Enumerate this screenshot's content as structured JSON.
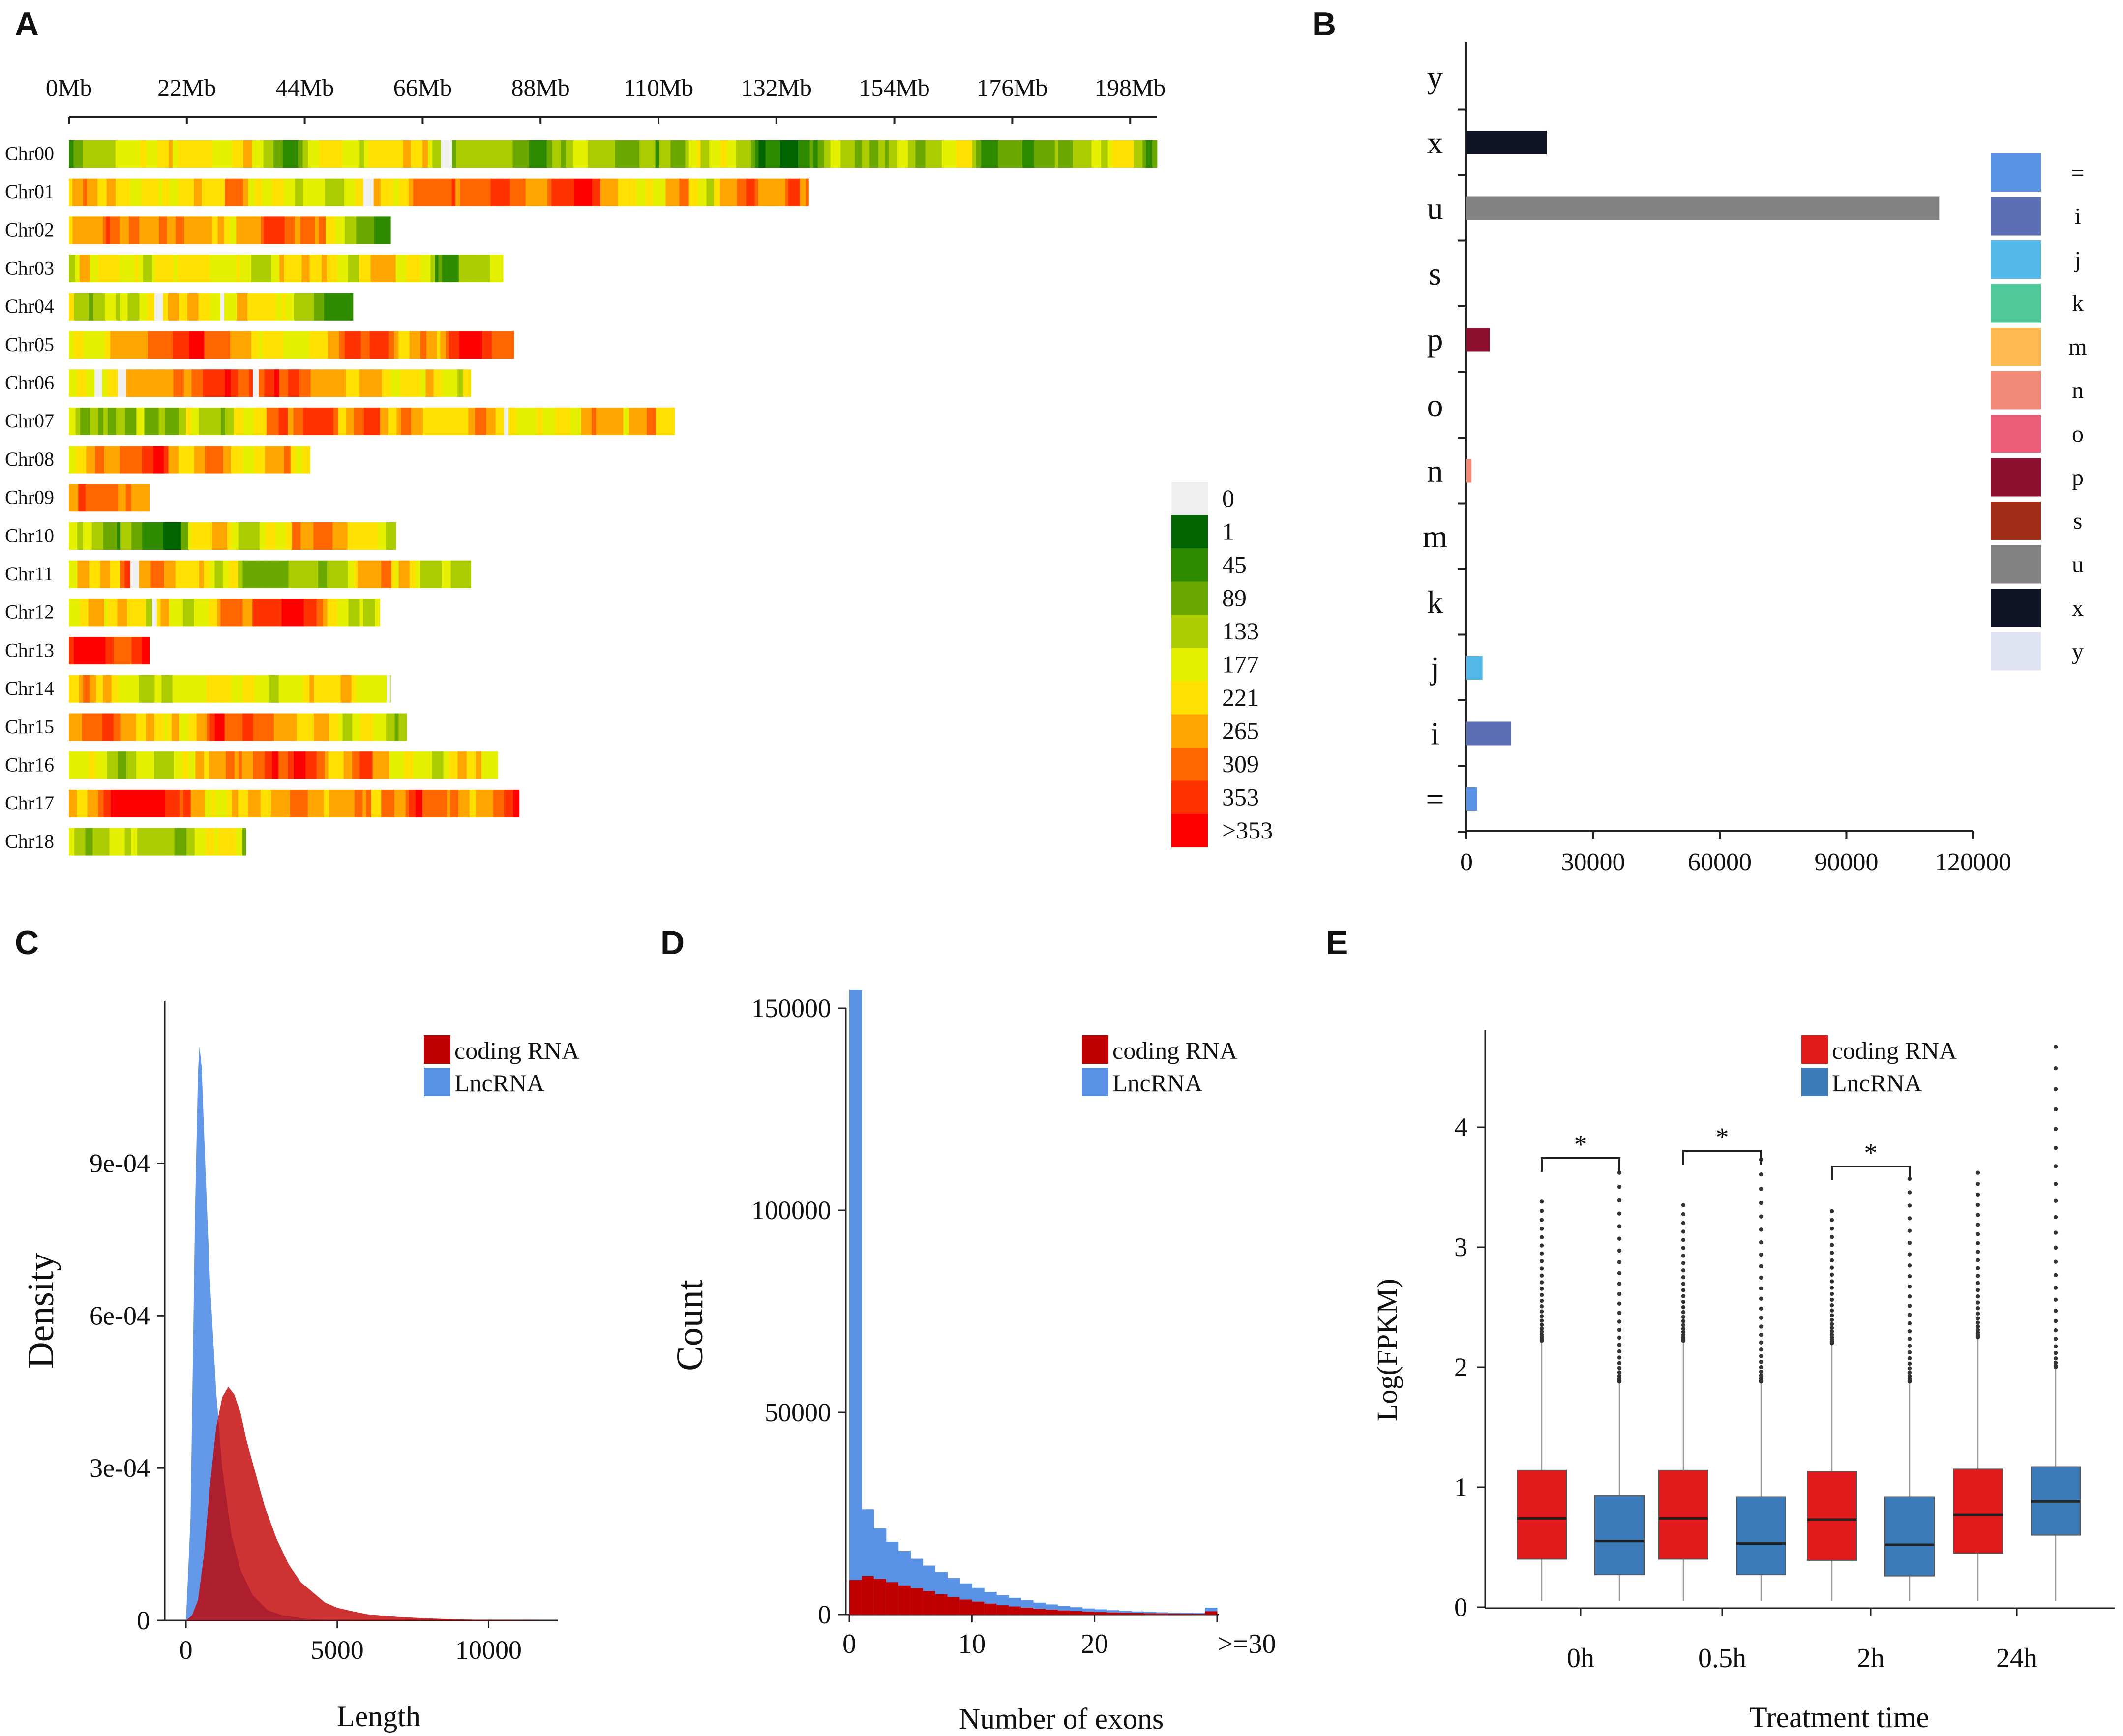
{
  "panels": {
    "A": "A",
    "B": "B",
    "C": "C",
    "D": "D",
    "E": "E"
  },
  "colors": {
    "coding": "#c00000",
    "lnc": "#5a92e6",
    "box_red": "#e31a1c",
    "box_blue": "#3a7ab8"
  },
  "chart_data": [
    {
      "panel": "A",
      "type": "heatmap",
      "title": "",
      "xaxis_ticks": [
        "0Mb",
        "22Mb",
        "44Mb",
        "66Mb",
        "88Mb",
        "110Mb",
        "132Mb",
        "154Mb",
        "176Mb",
        "198Mb"
      ],
      "chromosomes": [
        {
          "name": "Chr00",
          "length_mb": 203,
          "bias": 0.28,
          "seed": 11
        },
        {
          "name": "Chr01",
          "length_mb": 138,
          "bias": 0.56,
          "seed": 23
        },
        {
          "name": "Chr02",
          "length_mb": 60,
          "bias": 0.58,
          "seed": 37
        },
        {
          "name": "Chr03",
          "length_mb": 81,
          "bias": 0.47,
          "seed": 41
        },
        {
          "name": "Chr04",
          "length_mb": 53,
          "bias": 0.56,
          "seed": 53
        },
        {
          "name": "Chr05",
          "length_mb": 83,
          "bias": 0.5,
          "seed": 67
        },
        {
          "name": "Chr06",
          "length_mb": 75,
          "bias": 0.55,
          "seed": 71
        },
        {
          "name": "Chr07",
          "length_mb": 113,
          "bias": 0.52,
          "seed": 83
        },
        {
          "name": "Chr08",
          "length_mb": 45,
          "bias": 0.5,
          "seed": 97
        },
        {
          "name": "Chr09",
          "length_mb": 15,
          "bias": 0.78,
          "seed": 101
        },
        {
          "name": "Chr10",
          "length_mb": 61,
          "bias": 0.52,
          "seed": 113
        },
        {
          "name": "Chr11",
          "length_mb": 75,
          "bias": 0.52,
          "seed": 127
        },
        {
          "name": "Chr12",
          "length_mb": 58,
          "bias": 0.56,
          "seed": 131
        },
        {
          "name": "Chr13",
          "length_mb": 15,
          "bias": 0.76,
          "seed": 149
        },
        {
          "name": "Chr14",
          "length_mb": 60,
          "bias": 0.54,
          "seed": 157
        },
        {
          "name": "Chr15",
          "length_mb": 63,
          "bias": 0.55,
          "seed": 163
        },
        {
          "name": "Chr16",
          "length_mb": 80,
          "bias": 0.54,
          "seed": 173
        },
        {
          "name": "Chr17",
          "length_mb": 84,
          "bias": 0.55,
          "seed": 181
        },
        {
          "name": "Chr18",
          "length_mb": 33,
          "bias": 0.6,
          "seed": 191
        }
      ],
      "legend": [
        {
          "label": "0",
          "color": "#f0f0f0"
        },
        {
          "label": "1",
          "color": "#006400"
        },
        {
          "label": "45",
          "color": "#2e8b00"
        },
        {
          "label": "89",
          "color": "#6aa800"
        },
        {
          "label": "133",
          "color": "#aacc00"
        },
        {
          "label": "177",
          "color": "#e5f000"
        },
        {
          "label": "221",
          "color": "#ffe000"
        },
        {
          "label": "265",
          "color": "#ffa500"
        },
        {
          "label": "309",
          "color": "#ff6600"
        },
        {
          "label": "353",
          "color": "#ff3300"
        },
        {
          "label": ">353",
          "color": "#ff0000"
        }
      ]
    },
    {
      "panel": "B",
      "type": "bar",
      "orientation": "horizontal",
      "categories": [
        "=",
        "i",
        "j",
        "k",
        "m",
        "n",
        "o",
        "p",
        "s",
        "u",
        "x",
        "y"
      ],
      "values": [
        2500,
        10500,
        3800,
        0,
        0,
        1200,
        0,
        5500,
        0,
        112000,
        19000,
        0
      ],
      "xlim": [
        0,
        120000
      ],
      "xticks": [
        "0",
        "30000",
        "60000",
        "90000",
        "120000"
      ],
      "legend": [
        {
          "label": "=",
          "color": "#5a92e6"
        },
        {
          "label": "i",
          "color": "#5c6fb5"
        },
        {
          "label": "j",
          "color": "#52b8e8"
        },
        {
          "label": "k",
          "color": "#4fc99a"
        },
        {
          "label": "m",
          "color": "#ffb952"
        },
        {
          "label": "n",
          "color": "#f08a76"
        },
        {
          "label": "o",
          "color": "#ec5e78"
        },
        {
          "label": "p",
          "color": "#8e1030"
        },
        {
          "label": "s",
          "color": "#a22e1a"
        },
        {
          "label": "u",
          "color": "#828282"
        },
        {
          "label": "x",
          "color": "#0e1426"
        },
        {
          "label": "y",
          "color": "#dfe3f2"
        }
      ]
    },
    {
      "panel": "C",
      "type": "area",
      "xlabel": "Length",
      "ylabel": "Density",
      "xlim": [
        -700,
        12300
      ],
      "ylim": [
        0,
        0.00122
      ],
      "xticks": [
        {
          "v": 0,
          "label": "0"
        },
        {
          "v": 5000,
          "label": "5000"
        },
        {
          "v": 10000,
          "label": "10000"
        }
      ],
      "yticks": [
        {
          "v": 0,
          "label": "0"
        },
        {
          "v": 0.0003,
          "label": "3e-04"
        },
        {
          "v": 0.0006,
          "label": "6e-04"
        },
        {
          "v": 0.0009,
          "label": "9e-04"
        }
      ],
      "series": [
        {
          "name": "LncRNA",
          "color": "#5a92e6",
          "x": [
            0,
            150,
            300,
            400,
            450,
            520,
            650,
            800,
            1000,
            1200,
            1500,
            1800,
            2200,
            2700,
            3200,
            4000,
            5000,
            6000
          ],
          "y": [
            0,
            0.0002,
            0.0008,
            0.00108,
            0.00113,
            0.00109,
            0.00088,
            0.00066,
            0.00045,
            0.0003,
            0.00017,
            0.0001,
            5e-05,
            2e-05,
            1e-05,
            3e-06,
            1e-06,
            0
          ]
        },
        {
          "name": "coding RNA",
          "color": "#c00000",
          "x": [
            0,
            200,
            400,
            600,
            800,
            1000,
            1200,
            1400,
            1600,
            1800,
            2000,
            2300,
            2600,
            3000,
            3400,
            3800,
            4200,
            4600,
            5000,
            5500,
            6000,
            7000,
            8000,
            9000,
            10000,
            11000,
            12000
          ],
          "y": [
            0,
            1e-05,
            4e-05,
            0.00013,
            0.00027,
            0.00038,
            0.00044,
            0.00046,
            0.000445,
            0.00041,
            0.000355,
            0.00029,
            0.000225,
            0.00016,
            0.00011,
            7.5e-05,
            5.5e-05,
            3.5e-05,
            2.5e-05,
            1.8e-05,
            1.2e-05,
            7e-06,
            4e-06,
            2e-06,
            1e-06,
            5e-07,
            0
          ]
        }
      ],
      "legend": [
        "coding RNA",
        "LncRNA"
      ]
    },
    {
      "panel": "D",
      "type": "bar",
      "stacked": true,
      "xlabel": "Number of exons",
      "ylabel": "Count",
      "xlim": [
        0,
        30
      ],
      "ylim": [
        0,
        150000
      ],
      "xticks": [
        {
          "v": 0,
          "label": "0"
        },
        {
          "v": 10,
          "label": "10"
        },
        {
          "v": 20,
          "label": "20"
        },
        {
          "v": 30,
          "label": ">=30"
        }
      ],
      "yticks": [
        {
          "v": 0,
          "label": "0"
        },
        {
          "v": 50000,
          "label": "50000"
        },
        {
          "v": 100000,
          "label": "100000"
        },
        {
          "v": 150000,
          "label": "150000"
        }
      ],
      "bins": [
        1,
        2,
        3,
        4,
        5,
        6,
        7,
        8,
        9,
        10,
        11,
        12,
        13,
        14,
        15,
        16,
        17,
        18,
        19,
        20,
        21,
        22,
        23,
        24,
        25,
        26,
        27,
        28,
        29,
        30
      ],
      "series": [
        {
          "name": "coding RNA",
          "color": "#c00000",
          "values": [
            8500,
            9500,
            8800,
            8000,
            7200,
            6500,
            5800,
            5000,
            4300,
            3700,
            3200,
            2700,
            2300,
            2000,
            1700,
            1400,
            1200,
            1000,
            850,
            700,
            600,
            500,
            420,
            360,
            300,
            260,
            220,
            190,
            160,
            800
          ]
        },
        {
          "name": "LncRNA",
          "color": "#5a92e6",
          "values": [
            146000,
            16500,
            12500,
            10000,
            8500,
            7300,
            6300,
            5500,
            4700,
            4000,
            3400,
            2900,
            2500,
            2150,
            1850,
            1550,
            1300,
            1100,
            950,
            800,
            680,
            560,
            470,
            400,
            340,
            290,
            250,
            215,
            185,
            900
          ]
        }
      ],
      "legend": [
        "coding RNA",
        "LncRNA"
      ]
    },
    {
      "panel": "E",
      "type": "box",
      "xlabel": "Treatment time",
      "ylabel": "Log(FPKM)",
      "ylim": [
        0,
        4.75
      ],
      "categories": [
        "0h",
        "0.5h",
        "2h",
        "24h"
      ],
      "yticks": [
        {
          "v": 0,
          "label": "0"
        },
        {
          "v": 1,
          "label": "1"
        },
        {
          "v": 2,
          "label": "2"
        },
        {
          "v": 3,
          "label": "3"
        },
        {
          "v": 4,
          "label": "4"
        }
      ],
      "series": [
        {
          "name": "coding RNA",
          "color": "#e31a1c",
          "boxes": [
            {
              "min": 0.05,
              "q1": 0.4,
              "median": 0.74,
              "q3": 1.14,
              "max": 2.22,
              "outlier_top": 3.38
            },
            {
              "min": 0.05,
              "q1": 0.4,
              "median": 0.74,
              "q3": 1.14,
              "max": 2.22,
              "outlier_top": 3.35
            },
            {
              "min": 0.05,
              "q1": 0.39,
              "median": 0.73,
              "q3": 1.13,
              "max": 2.2,
              "outlier_top": 3.3
            },
            {
              "min": 0.05,
              "q1": 0.45,
              "median": 0.77,
              "q3": 1.15,
              "max": 2.25,
              "outlier_top": 3.62
            }
          ]
        },
        {
          "name": "LncRNA",
          "color": "#3a7ab8",
          "boxes": [
            {
              "min": 0.05,
              "q1": 0.27,
              "median": 0.55,
              "q3": 0.93,
              "max": 1.88,
              "outlier_top": 3.62
            },
            {
              "min": 0.05,
              "q1": 0.27,
              "median": 0.53,
              "q3": 0.92,
              "max": 1.88,
              "outlier_top": 3.73
            },
            {
              "min": 0.05,
              "q1": 0.26,
              "median": 0.52,
              "q3": 0.92,
              "max": 1.88,
              "outlier_top": 3.57
            },
            {
              "min": 0.05,
              "q1": 0.6,
              "median": 0.88,
              "q3": 1.17,
              "max": 2.0,
              "outlier_top": 4.67
            }
          ]
        }
      ],
      "significance": [
        "*",
        "*",
        "*",
        ""
      ],
      "legend": [
        "coding RNA",
        "LncRNA"
      ]
    }
  ]
}
